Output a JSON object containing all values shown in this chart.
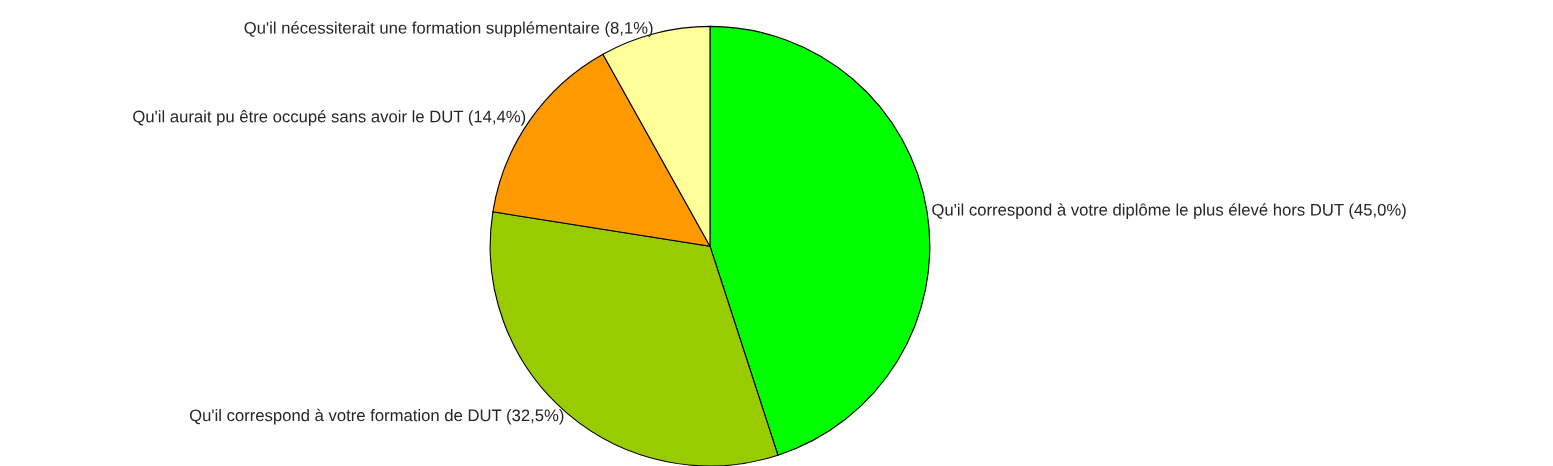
{
  "chart_data": {
    "type": "pie",
    "categories": [
      "Qu'il correspond à votre diplôme le plus élevé hors DUT",
      "Qu'il correspond à votre formation de DUT",
      "Qu'il aurait pu être occupé sans avoir le DUT",
      "Qu'il nécessiterait une formation supplémentaire"
    ],
    "values": [
      45.0,
      32.5,
      14.4,
      8.1
    ],
    "value_labels": [
      "(45,0%)",
      "(32,5%)",
      "(14,4%)",
      "(8,1%)"
    ],
    "colors": [
      "#00ff00",
      "#99cc00",
      "#ff9900",
      "#ffff99"
    ]
  }
}
